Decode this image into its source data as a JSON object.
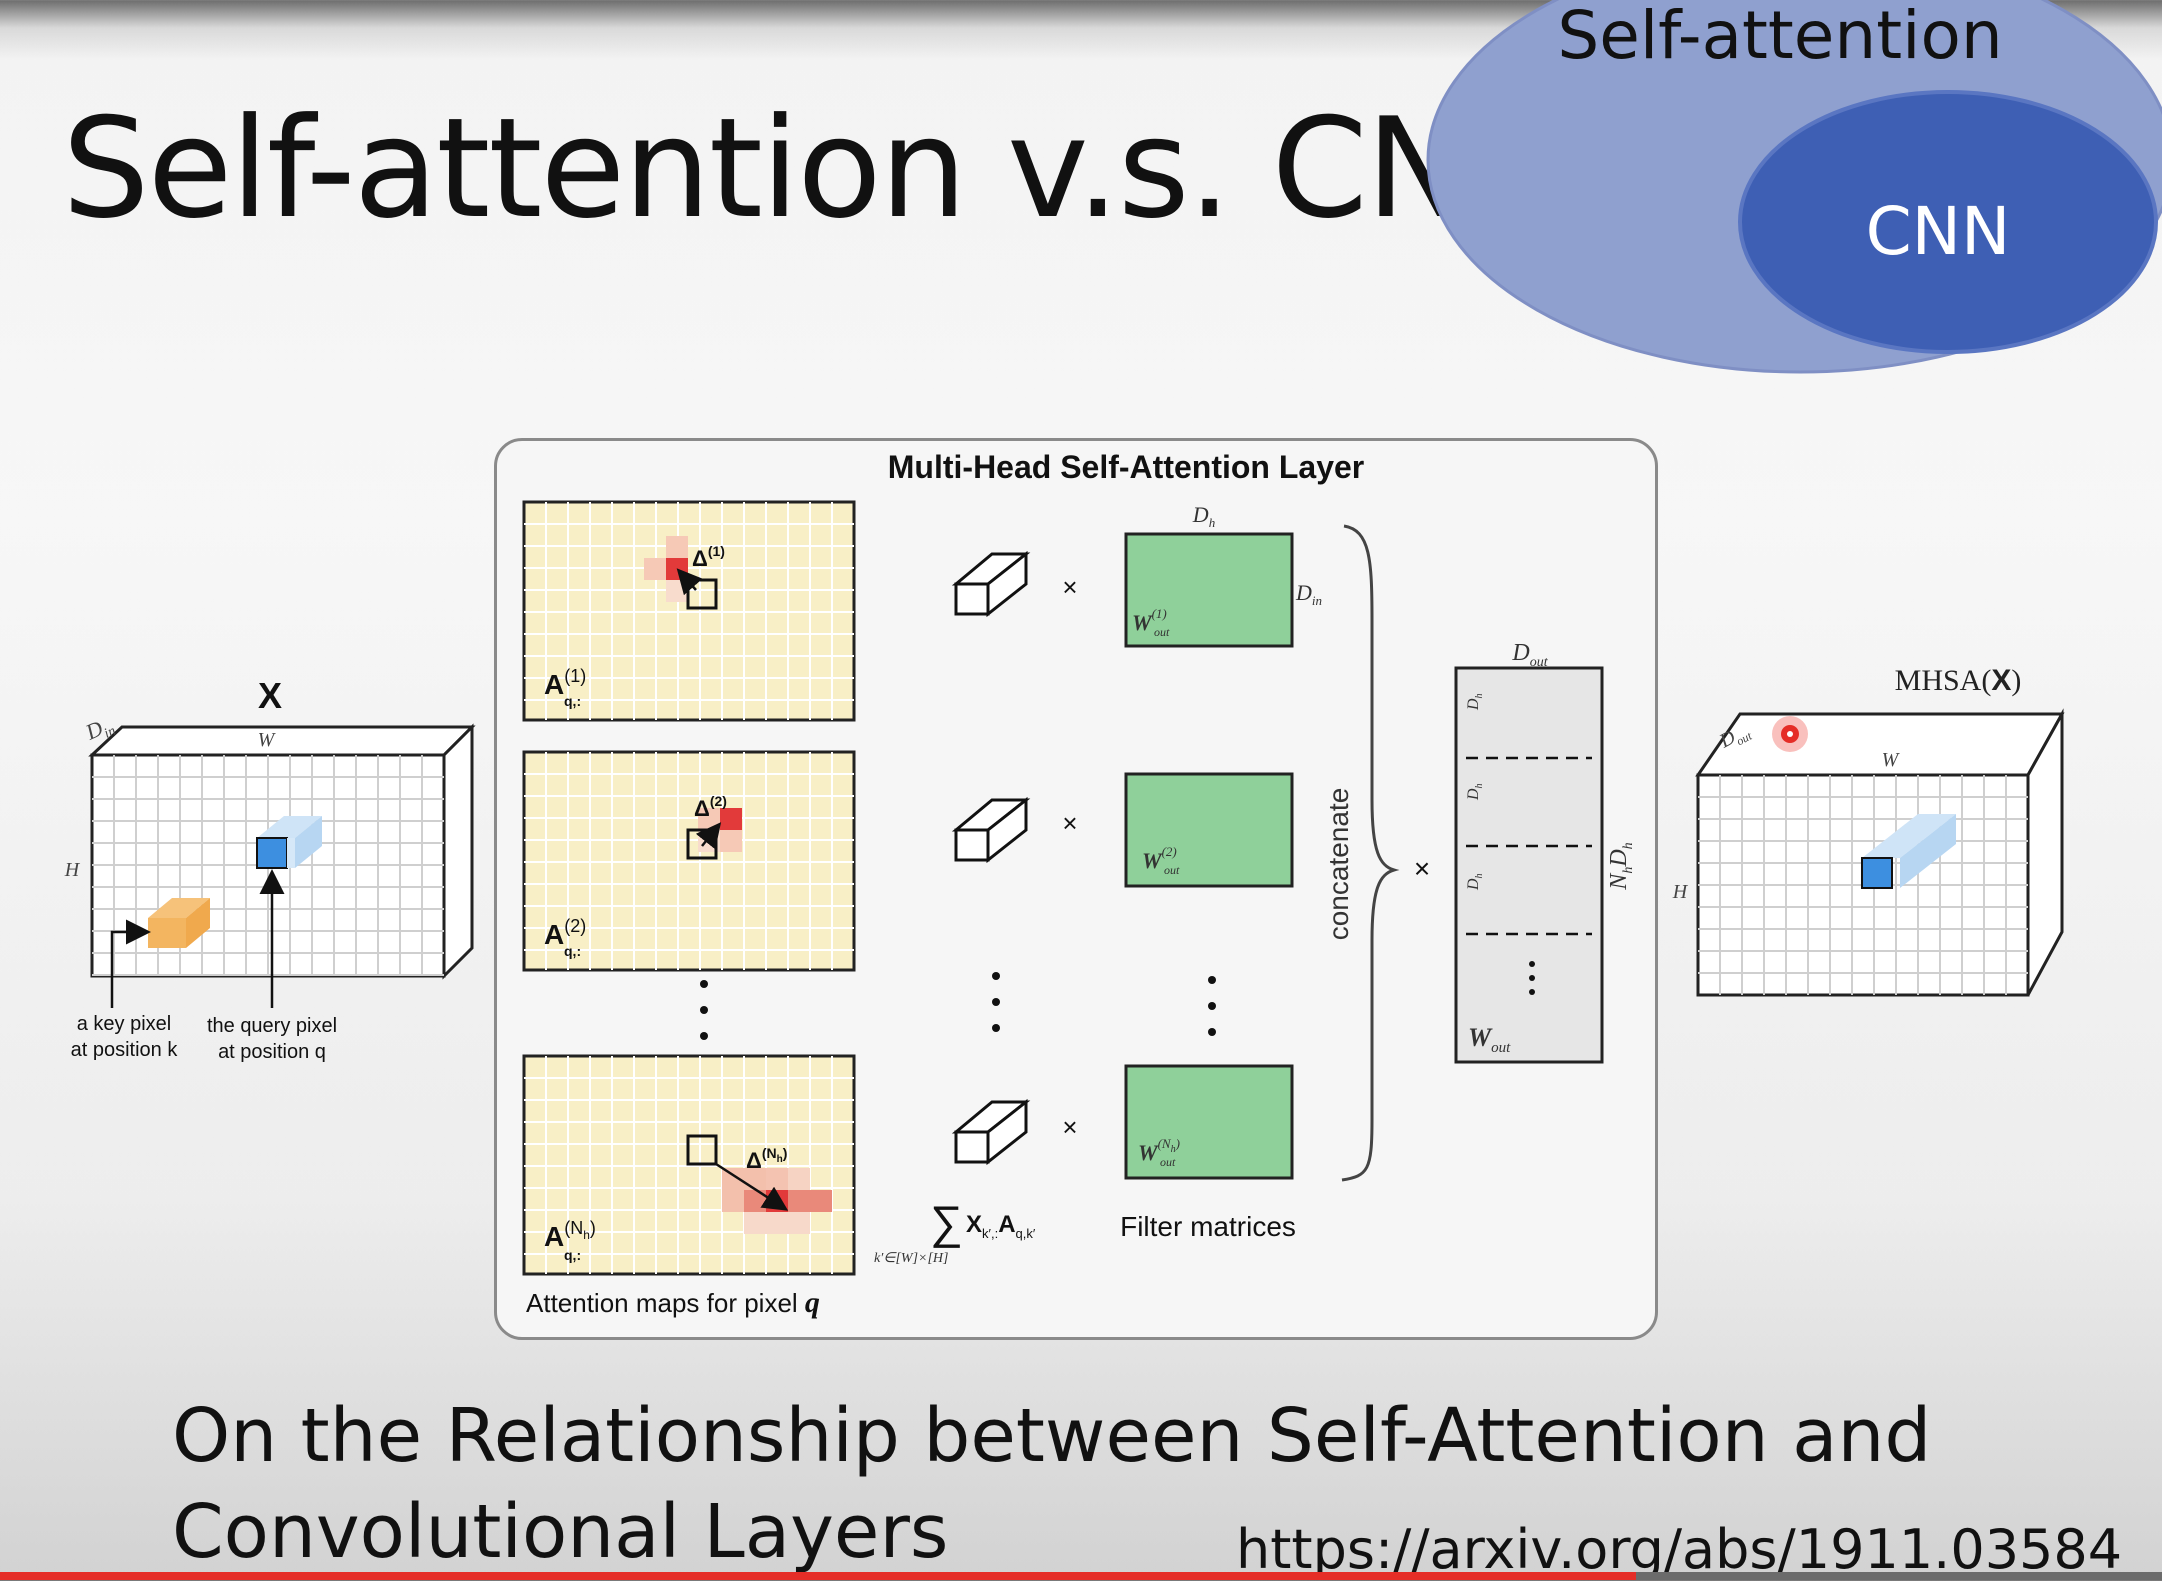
{
  "slide": {
    "title": "Self-attention v.s. CNN",
    "venn": {
      "outer": "Self-attention",
      "inner": "CNN"
    },
    "paper_title_line1": "On the Relationship between Self-Attention and",
    "paper_title_line2": "Convolutional Layers",
    "url": "https://arxiv.org/abs/1911.03584"
  },
  "figure": {
    "layer_title": "Multi-Head Self-Attention Layer",
    "input": {
      "label": "X",
      "din": "D",
      "din_sub": "in",
      "w": "W",
      "h": "H",
      "key_caption_1": "a key pixel",
      "key_caption_2": "at position k",
      "query_caption_1": "the query pixel",
      "query_caption_2": "at position q"
    },
    "maps": {
      "a1": "A",
      "a1_sup": "(1)",
      "a1_sub": "q,:",
      "a2": "A",
      "a2_sup": "(2)",
      "a2_sub": "q,:",
      "an": "A",
      "an_sup": "(N",
      "an_sup_sub": "h",
      "an_sup_end": ")",
      "an_sub": "q,:",
      "delta1": "Δ",
      "delta1_sup": "(1)",
      "delta2": "Δ",
      "delta2_sup": "(2)",
      "deltan": "Δ",
      "deltan_sup": "(N",
      "deltan_sup_end": ")",
      "caption": "Attention maps for pixel q"
    },
    "times": "×",
    "sum_label": "X",
    "sum_sub": "k′,:",
    "sum_a": "A",
    "sum_a_sub": "q,k′",
    "sum_range": "k′∈[W]×[H]",
    "filters": {
      "dh": "D",
      "dh_sub": "h",
      "din": "D",
      "din_sub": "in",
      "w1": "W",
      "w1_sup": "(1)",
      "w1_sub": "out",
      "w2": "W",
      "w2_sup": "(2)",
      "w2_sub": "out",
      "wn": "W",
      "wn_sup": "(N",
      "wn_sup_end": ")",
      "wn_sub": "out",
      "caption": "Filter matrices"
    },
    "concat": "concatenate",
    "wout": {
      "dout": "D",
      "dout_sub": "out",
      "dh": "D",
      "dh_sub": "h",
      "side": "N",
      "side_sub1": "h",
      "side2": "D",
      "side_sub2": "h",
      "label": "W",
      "label_sub": "out"
    },
    "output": {
      "label": "MHSA(",
      "label_bold": "X",
      "label_end": ")",
      "dout": "D",
      "dout_sub": "out",
      "w": "W",
      "h": "H"
    }
  },
  "colors": {
    "venn_outer": "#8fa0cf",
    "venn_inner": "#3e5fb4",
    "filter_green": "#8fd09a",
    "map_bg": "#f8efc6",
    "accent_red": "#e52d27"
  }
}
